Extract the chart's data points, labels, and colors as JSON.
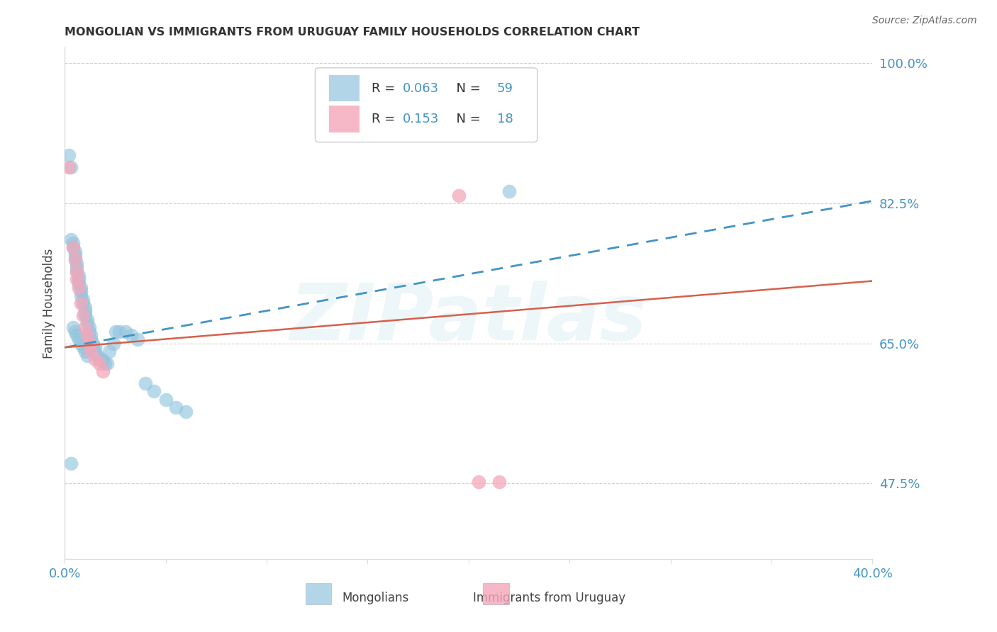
{
  "title": "MONGOLIAN VS IMMIGRANTS FROM URUGUAY FAMILY HOUSEHOLDS CORRELATION CHART",
  "source": "Source: ZipAtlas.com",
  "ylabel": "Family Households",
  "xlim": [
    0.0,
    0.4
  ],
  "ylim": [
    0.38,
    1.02
  ],
  "ytick_vals": [
    0.475,
    0.65,
    0.825,
    1.0
  ],
  "ytick_labels": [
    "47.5%",
    "65.0%",
    "82.5%",
    "100.0%"
  ],
  "xtick_vals": [
    0.0,
    0.05,
    0.1,
    0.15,
    0.2,
    0.25,
    0.3,
    0.35,
    0.4
  ],
  "xtick_labels": [
    "0.0%",
    "",
    "",
    "",
    "",
    "",
    "",
    "",
    "40.0%"
  ],
  "blue_color": "#92c5de",
  "pink_color": "#f4a7b9",
  "blue_line_color": "#4393c3",
  "pink_line_color": "#d6604d",
  "axis_color": "#4393c3",
  "watermark": "ZIPatlas",
  "background_color": "#ffffff",
  "grid_color": "#d0d0d0",
  "mon_x": [
    0.002,
    0.003,
    0.003,
    0.004,
    0.004,
    0.005,
    0.005,
    0.005,
    0.006,
    0.006,
    0.006,
    0.007,
    0.007,
    0.007,
    0.008,
    0.008,
    0.008,
    0.009,
    0.009,
    0.01,
    0.01,
    0.01,
    0.011,
    0.011,
    0.012,
    0.012,
    0.013,
    0.013,
    0.014,
    0.015,
    0.015,
    0.016,
    0.017,
    0.018,
    0.019,
    0.02,
    0.021,
    0.022,
    0.024,
    0.025,
    0.027,
    0.03,
    0.033,
    0.036,
    0.04,
    0.044,
    0.05,
    0.055,
    0.06,
    0.004,
    0.005,
    0.006,
    0.007,
    0.008,
    0.009,
    0.01,
    0.011,
    0.003,
    0.22
  ],
  "mon_y": [
    0.885,
    0.87,
    0.78,
    0.775,
    0.77,
    0.765,
    0.76,
    0.755,
    0.75,
    0.745,
    0.74,
    0.735,
    0.73,
    0.725,
    0.72,
    0.715,
    0.71,
    0.705,
    0.7,
    0.695,
    0.69,
    0.685,
    0.68,
    0.675,
    0.67,
    0.665,
    0.66,
    0.655,
    0.65,
    0.645,
    0.64,
    0.635,
    0.63,
    0.63,
    0.628,
    0.625,
    0.625,
    0.64,
    0.65,
    0.665,
    0.665,
    0.665,
    0.66,
    0.655,
    0.6,
    0.59,
    0.58,
    0.57,
    0.565,
    0.67,
    0.665,
    0.66,
    0.655,
    0.65,
    0.645,
    0.64,
    0.635,
    0.5,
    0.84
  ],
  "uru_x": [
    0.002,
    0.004,
    0.005,
    0.006,
    0.006,
    0.007,
    0.008,
    0.009,
    0.01,
    0.011,
    0.012,
    0.013,
    0.015,
    0.017,
    0.019,
    0.195,
    0.205,
    0.215
  ],
  "uru_y": [
    0.87,
    0.77,
    0.755,
    0.74,
    0.73,
    0.72,
    0.7,
    0.685,
    0.67,
    0.66,
    0.65,
    0.64,
    0.63,
    0.625,
    0.615,
    0.835,
    0.477,
    0.477
  ],
  "blue_line_x0": 0.0,
  "blue_line_x1": 0.4,
  "blue_line_y0": 0.645,
  "blue_line_y1": 0.828,
  "pink_line_x0": 0.0,
  "pink_line_x1": 0.4,
  "pink_line_y0": 0.645,
  "pink_line_y1": 0.728
}
